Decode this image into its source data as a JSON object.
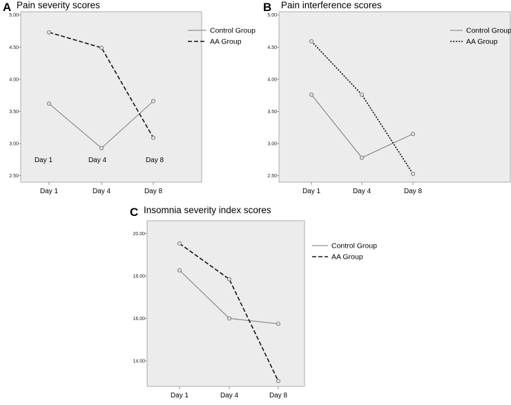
{
  "chart_data": [
    {
      "panel": "A",
      "title": "Pain severity scores",
      "type": "line",
      "categories": [
        "Day 1",
        "Day 4",
        "Day 8"
      ],
      "ylim": [
        2.4,
        5.05
      ],
      "yticks": [
        "2.50",
        "3.00",
        "3.50",
        "4.00",
        "4.50",
        "5.00"
      ],
      "series": [
        {
          "name": "Control Group",
          "values": [
            3.62,
            2.93,
            3.66
          ],
          "dash": "solid"
        },
        {
          "name": "AA Group",
          "values": [
            4.73,
            4.49,
            3.09
          ],
          "dash": "dashed"
        }
      ],
      "inner_labels": [
        "Day 1",
        "Day 4",
        "Day 8"
      ],
      "legend": [
        "Control Group",
        "AA Group"
      ]
    },
    {
      "panel": "B",
      "title": "Pain interference scores",
      "type": "line",
      "categories": [
        "Day 1",
        "Day 4",
        "Day 8"
      ],
      "ylim": [
        2.4,
        5.05
      ],
      "yticks": [
        "2.50",
        "3.00",
        "3.50",
        "4.00",
        "4.50",
        "5.00"
      ],
      "series": [
        {
          "name": "Control Group",
          "values": [
            3.76,
            2.78,
            3.15
          ],
          "dash": "solid"
        },
        {
          "name": "AA Group",
          "values": [
            4.59,
            3.76,
            2.53
          ],
          "dash": "dotted"
        }
      ],
      "legend": [
        "Control Group",
        "AA Group"
      ]
    },
    {
      "panel": "C",
      "title": "Insomnia severity index scores",
      "type": "line",
      "categories": [
        "Day 1",
        "Day 4",
        "Day 8"
      ],
      "ylim": [
        12.8,
        20.6
      ],
      "yticks": [
        "14.00",
        "16.00",
        "18.00",
        "20.00"
      ],
      "series": [
        {
          "name": "Control Group",
          "values": [
            18.27,
            16.0,
            15.75
          ],
          "dash": "solid"
        },
        {
          "name": "AA Group",
          "values": [
            19.53,
            17.85,
            13.05
          ],
          "dash": "dashed"
        }
      ],
      "legend": [
        "Control Group",
        "AA Group"
      ]
    }
  ]
}
